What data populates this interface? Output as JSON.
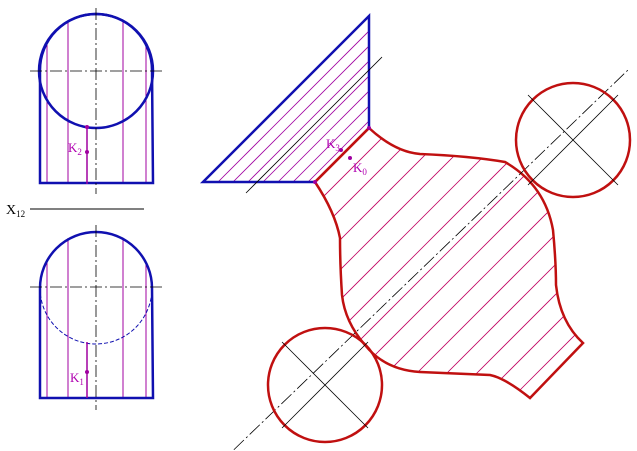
{
  "labels": {
    "axis": "X",
    "axis_sub": "12",
    "k1": "K",
    "k1_sub": "1",
    "k2": "K",
    "k2_sub": "2",
    "k3": "K",
    "k3_sub": "3",
    "k0": "K",
    "k0_sub": "0"
  },
  "colors": {
    "blue_outline": "#1010b0",
    "red_outline": "#c01010",
    "purple_lines": "#a000a0",
    "hatch": "#c00060",
    "axis_line": "#000000"
  }
}
